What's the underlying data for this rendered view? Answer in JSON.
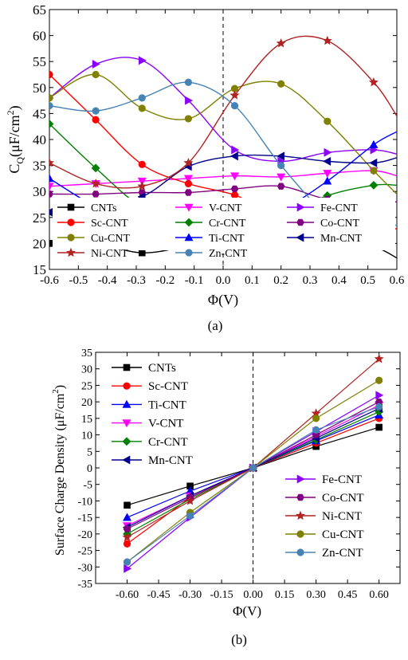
{
  "chart_data": [
    {
      "panel_label": "(a)",
      "type": "line",
      "xlabel": "Φ(V)",
      "ylabel_main": "C",
      "ylabel_sub": "Q",
      "ylabel_rest": "(μF/cm",
      "ylabel_sup": "2",
      "ylabel_end": ")",
      "xlim": [
        -0.6,
        0.6
      ],
      "ylim": [
        15,
        65
      ],
      "xticks": [
        "-0.6",
        "-0.5",
        "-0.4",
        "-0.3",
        "-0.2",
        "-0.1",
        "0.0",
        "0.1",
        "0.2",
        "0.3",
        "0.4",
        "0.5",
        "0.6"
      ],
      "yticks": [
        "15",
        "20",
        "25",
        "30",
        "35",
        "40",
        "45",
        "50",
        "55",
        "60",
        "65"
      ],
      "x": [
        -0.6,
        -0.44,
        -0.28,
        -0.12,
        0.04,
        0.2,
        0.36,
        0.52,
        0.6
      ],
      "vline_x": 0,
      "legend_placement": "bottom",
      "series": [
        {
          "name": "CNTs",
          "color": "#000000",
          "marker": "square",
          "values": [
            20,
            20,
            18.2,
            19.5,
            21.3,
            21,
            21.2,
            19.4,
            17.2
          ]
        },
        {
          "name": "V-CNT",
          "color": "#ff00ff",
          "marker": "tri-down",
          "values": [
            31,
            31.5,
            32,
            32.5,
            33,
            32.8,
            33.5,
            34,
            33
          ]
        },
        {
          "name": "Fe-CNT",
          "color": "#8b00ff",
          "marker": "tri-right",
          "values": [
            48,
            54.5,
            55.2,
            47.5,
            38,
            35.8,
            37.5,
            38,
            37.2
          ]
        },
        {
          "name": "Sc-CNT",
          "color": "#ff0000",
          "marker": "circle",
          "values": [
            52.5,
            43.8,
            35.2,
            31.5,
            29.3,
            25.3,
            23,
            23,
            22.8
          ]
        },
        {
          "name": "Cr-CNT",
          "color": "#008000",
          "marker": "diamond",
          "values": [
            43,
            34.5,
            27,
            24.2,
            24,
            25.2,
            29.2,
            31.2,
            31.2
          ]
        },
        {
          "name": "Co-CNT",
          "color": "#800080",
          "marker": "hexagon",
          "values": [
            29.5,
            29.5,
            29.8,
            29.8,
            30.5,
            31,
            28.5,
            28,
            28
          ]
        },
        {
          "name": "Cu-CNT",
          "color": "#808000",
          "marker": "circle",
          "values": [
            48,
            52.5,
            46,
            44,
            49.8,
            50.7,
            43.5,
            34,
            29.5
          ]
        },
        {
          "name": "Ti-CNT",
          "color": "#0000ff",
          "marker": "tri-up",
          "values": [
            32.5,
            27,
            22.8,
            22.8,
            24.5,
            26.5,
            32,
            39,
            41.5
          ]
        },
        {
          "name": "Mn-CNT",
          "color": "#00008b",
          "marker": "tri-left",
          "values": [
            26,
            27.6,
            29,
            34.8,
            36.8,
            36.8,
            35.8,
            35.5,
            36.5
          ]
        },
        {
          "name": "Ni-CNT",
          "color": "#b22222",
          "marker": "star",
          "values": [
            35.5,
            31.5,
            31,
            35.5,
            48.5,
            58.5,
            59,
            51,
            44.5
          ]
        },
        {
          "name": "Zn-CNT",
          "color": "#4682b4",
          "marker": "circle",
          "values": [
            46.5,
            45.5,
            48,
            51,
            46.5,
            35,
            25.8,
            23.8,
            23.5
          ]
        }
      ]
    },
    {
      "panel_label": "(b)",
      "type": "line",
      "xlabel": "Φ(V)",
      "ylabel": "Surface Charge Density (μF/cm",
      "ylabel_sup": "2",
      "ylabel_end": ")",
      "xlim": [
        -0.75,
        0.7
      ],
      "ylim": [
        -35,
        35
      ],
      "xticks": [
        "-0.60",
        "-0.45",
        "-0.30",
        "-0.15",
        "0.00",
        "0.15",
        "0.30",
        "0.45",
        "0.60"
      ],
      "xtick_values": [
        -0.6,
        -0.45,
        -0.3,
        -0.15,
        0,
        0.15,
        0.3,
        0.45,
        0.6
      ],
      "yticks": [
        "-35",
        "-30",
        "-25",
        "-20",
        "-15",
        "-10",
        "-5",
        "0",
        "5",
        "10",
        "15",
        "20",
        "25",
        "30",
        "35"
      ],
      "x": [
        -0.6,
        -0.3,
        0,
        0.3,
        0.6
      ],
      "vline_x": 0,
      "legend_placement": "top-left and bottom-right",
      "series": [
        {
          "name": "CNTs",
          "color": "#000000",
          "marker": "square",
          "values": [
            -11.3,
            -5.5,
            0,
            6.5,
            12.3
          ]
        },
        {
          "name": "Sc-CNT",
          "color": "#ff0000",
          "marker": "circle",
          "values": [
            -23,
            -9,
            0,
            7.5,
            15
          ]
        },
        {
          "name": "Ti-CNT",
          "color": "#0000ff",
          "marker": "tri-up",
          "values": [
            -15,
            -7,
            0,
            8.2,
            16
          ]
        },
        {
          "name": "V-CNT",
          "color": "#ff00ff",
          "marker": "tri-down",
          "values": [
            -17.5,
            -8.5,
            0,
            9.5,
            19
          ]
        },
        {
          "name": "Cr-CNT",
          "color": "#008000",
          "marker": "diamond",
          "values": [
            -20,
            -9.5,
            0,
            8.5,
            17
          ]
        },
        {
          "name": "Mn-CNT",
          "color": "#00008b",
          "marker": "tri-left",
          "values": [
            -18,
            -8.5,
            0,
            9,
            18
          ]
        },
        {
          "name": "Fe-CNT",
          "color": "#8b00ff",
          "marker": "tri-right",
          "values": [
            -30.5,
            -15,
            0,
            11,
            22
          ]
        },
        {
          "name": "Co-CNT",
          "color": "#800080",
          "marker": "hexagon",
          "values": [
            -18.5,
            -9,
            0,
            10,
            20
          ]
        },
        {
          "name": "Ni-CNT",
          "color": "#b22222",
          "marker": "star",
          "values": [
            -21,
            -10,
            0,
            16.5,
            33
          ]
        },
        {
          "name": "Cu-CNT",
          "color": "#808000",
          "marker": "circle",
          "values": [
            -28.5,
            -13.5,
            0,
            15,
            26.5
          ]
        },
        {
          "name": "Zn-CNT",
          "color": "#4682b4",
          "marker": "circle",
          "values": [
            -28.5,
            -14.5,
            0,
            11.5,
            18.5
          ]
        }
      ]
    }
  ]
}
